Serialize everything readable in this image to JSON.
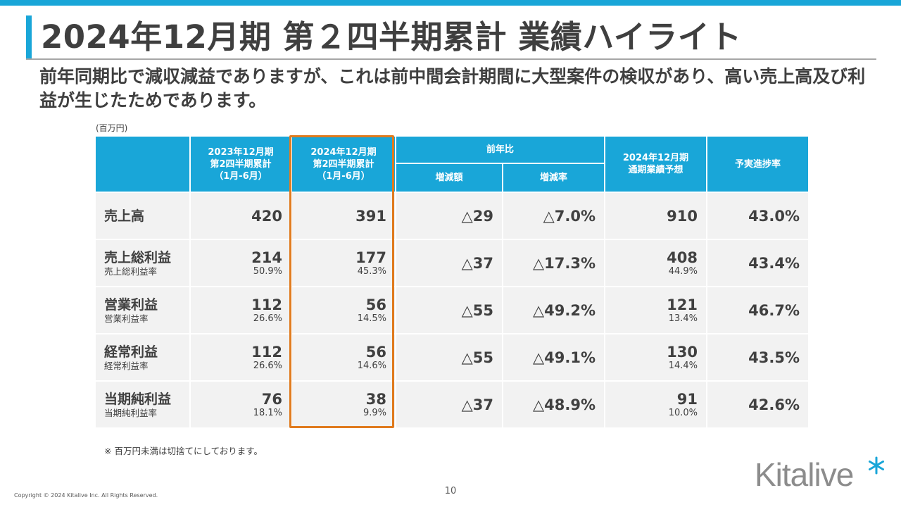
{
  "title": "2024年12月期 第２四半期累計 業績ハイライト",
  "subtitle": "前年同期比で減収減益でありますが、これは前中間会計期間に大型案件の検収があり、高い売上高及び利益が生じたためであります。",
  "unit": "(百万円)",
  "table": {
    "headers": {
      "prev_line1": "2023年12月期",
      "prev_line2": "第2四半期累計",
      "prev_line3": "（1月-6月）",
      "curr_line1": "2024年12月期",
      "curr_line2": "第2四半期累計",
      "curr_line3": "（1月-6月）",
      "yoy": "前年比",
      "yoy_amount": "増減額",
      "yoy_rate": "増減率",
      "forecast_line1": "2024年12月期",
      "forecast_line2": "通期業績予想",
      "progress": "予実進捗率"
    },
    "rows": [
      {
        "label": "売上高",
        "sublabel": "",
        "prev": "420",
        "prev_sub": "",
        "curr": "391",
        "curr_sub": "",
        "diff": "△29",
        "rate": "△7.0%",
        "forecast": "910",
        "forecast_sub": "",
        "progress": "43.0%"
      },
      {
        "label": "売上総利益",
        "sublabel": "売上総利益率",
        "prev": "214",
        "prev_sub": "50.9%",
        "curr": "177",
        "curr_sub": "45.3%",
        "diff": "△37",
        "rate": "△17.3%",
        "forecast": "408",
        "forecast_sub": "44.9%",
        "progress": "43.4%"
      },
      {
        "label": "営業利益",
        "sublabel": "営業利益率",
        "prev": "112",
        "prev_sub": "26.6%",
        "curr": "56",
        "curr_sub": "14.5%",
        "diff": "△55",
        "rate": "△49.2%",
        "forecast": "121",
        "forecast_sub": "13.4%",
        "progress": "46.7%"
      },
      {
        "label": "経常利益",
        "sublabel": "経常利益率",
        "prev": "112",
        "prev_sub": "26.6%",
        "curr": "56",
        "curr_sub": "14.6%",
        "diff": "△55",
        "rate": "△49.1%",
        "forecast": "130",
        "forecast_sub": "14.4%",
        "progress": "43.5%"
      },
      {
        "label": "当期純利益",
        "sublabel": "当期純利益率",
        "prev": "76",
        "prev_sub": "18.1%",
        "curr": "38",
        "curr_sub": "9.9%",
        "diff": "△37",
        "rate": "△48.9%",
        "forecast": "91",
        "forecast_sub": "10.0%",
        "progress": "42.6%"
      }
    ]
  },
  "footnote": "※ 百万円未満は切捨てにしております。",
  "page_number": "10",
  "copyright": "Copyright © 2024 Kitalive Inc. All Rights Reserved.",
  "logo": {
    "text": "Kitalive",
    "icon": "asterisk-star-icon"
  },
  "colors": {
    "accent": "#19a6d8",
    "highlight": "#e07b1e",
    "cell_bg": "#f2f2f2",
    "text": "#404040"
  }
}
